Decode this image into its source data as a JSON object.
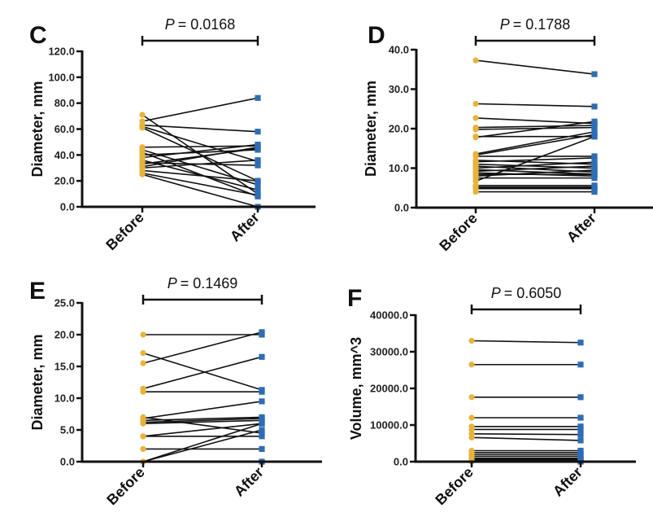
{
  "chart_data": [
    {
      "type": "line",
      "panel": "C",
      "title": "",
      "p_value_label": "P",
      "p_value_text": "= 0.0168",
      "xlabel": "",
      "ylabel": "Diameter, mm",
      "categories": [
        "Before",
        "After"
      ],
      "ylim": [
        0,
        120
      ],
      "yticks": [
        "0.0",
        "20.0",
        "40.0",
        "60.0",
        "80.0",
        "100.0",
        "120.0"
      ],
      "ytick_values": [
        0,
        20,
        40,
        60,
        80,
        100,
        120
      ],
      "pairs": [
        [
          71,
          10
        ],
        [
          66,
          84
        ],
        [
          63,
          58
        ],
        [
          62,
          35
        ],
        [
          61,
          20
        ],
        [
          46,
          47
        ],
        [
          44,
          17
        ],
        [
          42,
          8
        ],
        [
          40,
          44
        ],
        [
          38,
          48
        ],
        [
          36,
          13
        ],
        [
          34,
          32
        ],
        [
          33,
          45
        ],
        [
          31,
          46
        ],
        [
          30,
          36
        ],
        [
          28,
          20
        ],
        [
          26,
          9
        ],
        [
          25,
          0
        ]
      ],
      "legend": "none"
    },
    {
      "type": "line",
      "panel": "D",
      "title": "",
      "p_value_label": "P",
      "p_value_text": "= 0.1788",
      "xlabel": "",
      "ylabel": "Diameter, mm",
      "categories": [
        "Before",
        "After"
      ],
      "ylim": [
        0,
        40
      ],
      "yticks": [
        "0.0",
        "10.0",
        "20.0",
        "30.0",
        "40.0"
      ],
      "ytick_values": [
        0,
        10,
        20,
        30,
        40
      ],
      "pairs": [
        [
          37.3,
          33.8
        ],
        [
          26.3,
          25.6
        ],
        [
          22.7,
          21.3
        ],
        [
          20.3,
          20.8
        ],
        [
          19.8,
          20.3
        ],
        [
          18.0,
          18.0
        ],
        [
          17.8,
          21.8
        ],
        [
          13.6,
          19.2
        ],
        [
          13.3,
          18.5
        ],
        [
          13.0,
          13.0
        ],
        [
          12.0,
          11.0
        ],
        [
          11.6,
          12.6
        ],
        [
          11.0,
          10.0
        ],
        [
          10.5,
          9.0
        ],
        [
          10.0,
          11.5
        ],
        [
          9.6,
          8.5
        ],
        [
          9.2,
          10.5
        ],
        [
          8.8,
          8.0
        ],
        [
          8.4,
          8.4
        ],
        [
          8.0,
          9.5
        ],
        [
          7.5,
          7.5
        ],
        [
          6.7,
          18.0
        ],
        [
          5.6,
          5.6
        ],
        [
          5.2,
          5.2
        ],
        [
          5.0,
          5.0
        ],
        [
          4.8,
          4.8
        ],
        [
          4.0,
          4.0
        ]
      ],
      "legend": "none"
    },
    {
      "type": "line",
      "panel": "E",
      "title": "",
      "p_value_label": "P",
      "p_value_text": "= 0.1469",
      "xlabel": "",
      "ylabel": "Diameter, mm",
      "categories": [
        "Before",
        "After"
      ],
      "ylim": [
        0,
        25
      ],
      "yticks": [
        "0.0",
        "5.0",
        "10.0",
        "15.0",
        "20.0",
        "25.0"
      ],
      "ytick_values": [
        0,
        5,
        10,
        15,
        20,
        25
      ],
      "pairs": [
        [
          20.0,
          20.0
        ],
        [
          17.1,
          11.3
        ],
        [
          15.5,
          20.4
        ],
        [
          11.5,
          16.5
        ],
        [
          11.0,
          11.0
        ],
        [
          7.0,
          4.5
        ],
        [
          6.8,
          9.5
        ],
        [
          6.5,
          7.0
        ],
        [
          6.2,
          6.8
        ],
        [
          6.0,
          6.5
        ],
        [
          4.0,
          4.0
        ],
        [
          4.0,
          6.0
        ],
        [
          2.0,
          2.0
        ],
        [
          0.0,
          6.0
        ],
        [
          0.0,
          5.0
        ],
        [
          0.0,
          0.0
        ]
      ],
      "legend": "none"
    },
    {
      "type": "line",
      "panel": "F",
      "title": "",
      "p_value_label": "P",
      "p_value_text": "= 0.6050",
      "xlabel": "",
      "ylabel": "Volume, mm^3",
      "categories": [
        "Before",
        "After"
      ],
      "ylim": [
        0,
        40000
      ],
      "yticks": [
        "0.0",
        "10000.0",
        "20000.0",
        "30000.0",
        "40000.0"
      ],
      "ytick_values": [
        0,
        10000,
        20000,
        30000,
        40000
      ],
      "pairs": [
        [
          33000,
          32500
        ],
        [
          26500,
          26500
        ],
        [
          17600,
          17600
        ],
        [
          12000,
          12000
        ],
        [
          9600,
          9600
        ],
        [
          8800,
          8800
        ],
        [
          7600,
          7400
        ],
        [
          6600,
          5800
        ],
        [
          3000,
          3000
        ],
        [
          2500,
          2500
        ],
        [
          2000,
          2000
        ],
        [
          1500,
          1500
        ],
        [
          1000,
          1000
        ],
        [
          700,
          700
        ],
        [
          400,
          400
        ],
        [
          200,
          200
        ],
        [
          0,
          0
        ]
      ],
      "legend": "none"
    }
  ],
  "colors": {
    "before_marker": "#e8b33a",
    "after_marker": "#2e6db5",
    "line": "#111111",
    "axis": "#111111"
  },
  "panels": {
    "C": {
      "letter": "C"
    },
    "D": {
      "letter": "D"
    },
    "E": {
      "letter": "E"
    },
    "F": {
      "letter": "F"
    }
  }
}
